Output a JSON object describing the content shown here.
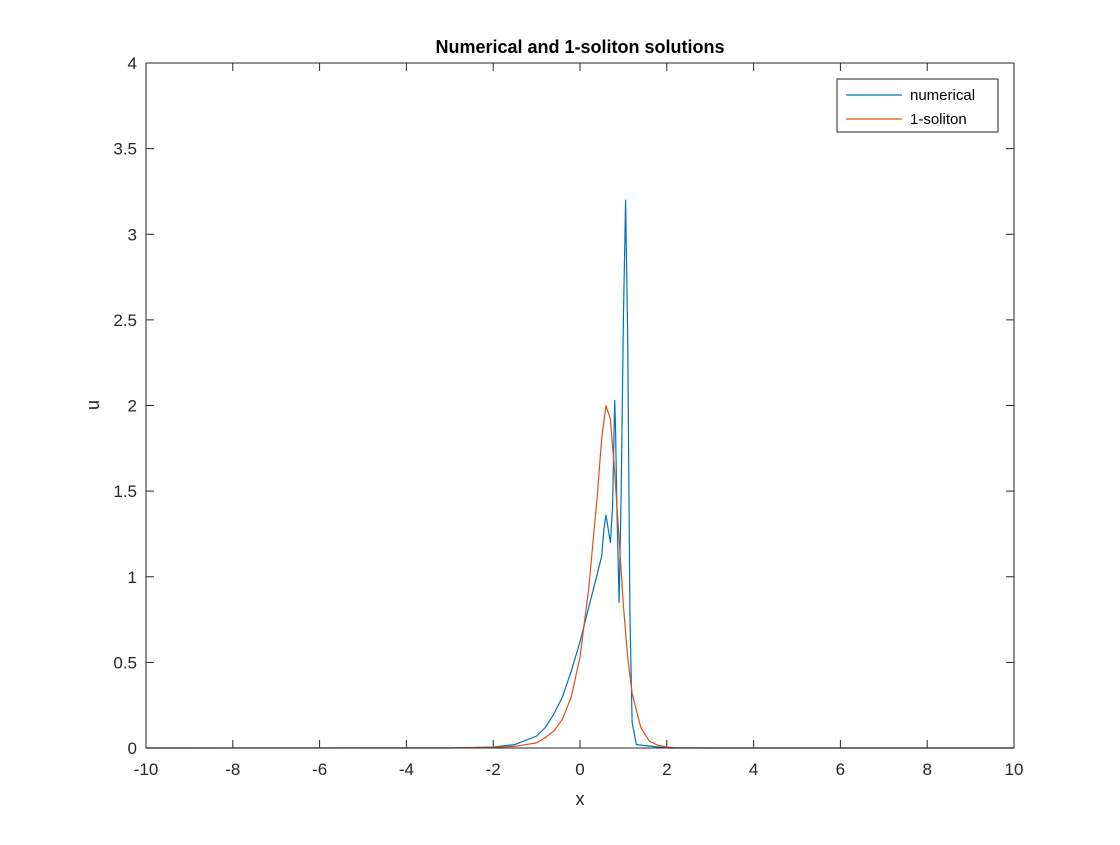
{
  "chart_data": {
    "type": "line",
    "title": "Numerical and 1-soliton solutions",
    "xlabel": "x",
    "ylabel": "u",
    "xlim": [
      -10,
      10
    ],
    "ylim": [
      0,
      4
    ],
    "xticks": [
      -10,
      -8,
      -6,
      -4,
      -2,
      0,
      2,
      4,
      6,
      8,
      10
    ],
    "yticks": [
      0,
      0.5,
      1,
      1.5,
      2,
      2.5,
      3,
      3.5,
      4
    ],
    "xtick_labels": [
      "-10",
      "-8",
      "-6",
      "-4",
      "-2",
      "0",
      "2",
      "4",
      "6",
      "8",
      "10"
    ],
    "ytick_labels": [
      "0",
      "0.5",
      "1",
      "1.5",
      "2",
      "2.5",
      "3",
      "3.5",
      "4"
    ],
    "grid": false,
    "legend_position": "top-right",
    "series": [
      {
        "name": "numerical",
        "color": "#0072BD",
        "x": [
          -10,
          -3,
          -2,
          -1.5,
          -1,
          -0.8,
          -0.6,
          -0.4,
          -0.2,
          0,
          0.2,
          0.4,
          0.5,
          0.55,
          0.6,
          0.65,
          0.7,
          0.75,
          0.8,
          0.82,
          0.85,
          0.9,
          0.95,
          1.0,
          1.05,
          1.1,
          1.15,
          1.2,
          1.3,
          2,
          10
        ],
        "y": [
          0,
          0,
          0.005,
          0.02,
          0.07,
          0.12,
          0.2,
          0.3,
          0.45,
          0.62,
          0.82,
          1.02,
          1.12,
          1.28,
          1.36,
          1.28,
          1.2,
          1.4,
          2.03,
          1.85,
          1.4,
          0.85,
          1.5,
          2.5,
          3.2,
          2.4,
          0.8,
          0.15,
          0.02,
          0,
          0
        ]
      },
      {
        "name": "1-soliton",
        "color": "#D95319",
        "x": [
          -10,
          -3,
          -2,
          -1.5,
          -1,
          -0.8,
          -0.6,
          -0.4,
          -0.2,
          0,
          0.2,
          0.4,
          0.5,
          0.6,
          0.7,
          0.8,
          0.9,
          1.0,
          1.1,
          1.2,
          1.4,
          1.6,
          1.8,
          2.0,
          2.2,
          2.6,
          3,
          10
        ],
        "y": [
          0,
          0.001,
          0.004,
          0.01,
          0.03,
          0.06,
          0.1,
          0.17,
          0.3,
          0.53,
          0.93,
          1.48,
          1.81,
          2.0,
          1.92,
          1.61,
          1.22,
          0.83,
          0.53,
          0.32,
          0.12,
          0.04,
          0.015,
          0.006,
          0.002,
          0.0005,
          0,
          0
        ]
      }
    ]
  }
}
